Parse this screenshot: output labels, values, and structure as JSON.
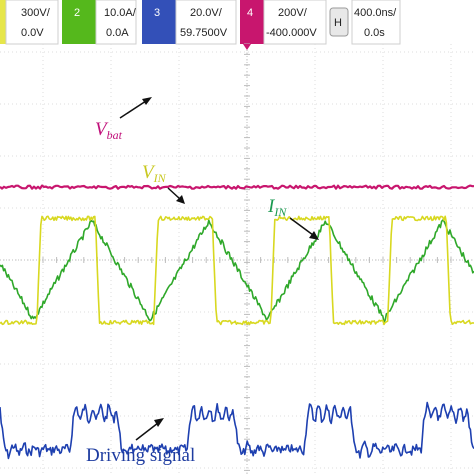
{
  "chart_data": {
    "type": "line",
    "title": "",
    "xlabel": "",
    "ylabel": "",
    "grid": true,
    "legend": "none",
    "time_per_div": "400.0ns/",
    "trigger_position": "0.0s",
    "channels": [
      {
        "id": "1",
        "scale": "300V/",
        "offset": "0.0V",
        "color": "#e6e64a",
        "active": false
      },
      {
        "id": "2",
        "scale": "10.0A/",
        "offset": "0.0A",
        "color": "#33aa11",
        "active": true
      },
      {
        "id": "3",
        "scale": "20.0V/",
        "offset": "59.7500V",
        "color": "#2d4cc8",
        "active": true
      },
      {
        "id": "4",
        "scale": "200V/",
        "offset": "-400.000V",
        "color": "#c8166e",
        "active": true
      },
      {
        "id": "H",
        "scale": "400.0ns/",
        "offset": "0.0s",
        "color": "#cccccc",
        "active": true
      }
    ],
    "series": [
      {
        "name": "V_bat",
        "color": "#c8166e",
        "shape": "dc",
        "level_div": 2.6,
        "noise_div": 0.03
      },
      {
        "name": "V_IN",
        "color": "#d8d820",
        "shape": "square",
        "period_div": 1.72,
        "phase_div": 0.05,
        "high_div": 5.2,
        "low_div": 3.2,
        "noise_div": 0.04
      },
      {
        "name": "I_IN",
        "color": "#2fa82a",
        "shape": "triangle",
        "period_div": 1.72,
        "phase_div": 0.0,
        "high_div": 5.15,
        "low_div": 3.25,
        "noise_div": 0.06
      },
      {
        "name": "Driving signal",
        "color": "#1e40b0",
        "shape": "pulse",
        "period_div": 1.72,
        "phase_div": -0.32,
        "high_div": 6.95,
        "low_div": 7.65,
        "noise_div": 0.09
      }
    ],
    "annotations": [
      {
        "main": "V",
        "sub": "bat",
        "color": "#c0107a",
        "target": "V_bat"
      },
      {
        "main": "V",
        "sub": "IN",
        "color": "#c8c820",
        "target": "V_IN"
      },
      {
        "main": "I",
        "sub": "IN",
        "color": "#1a9a50",
        "target": "I_IN"
      },
      {
        "main": "Driving signal",
        "sub": "",
        "color": "#1e3ca0",
        "target": "Driving signal"
      }
    ]
  }
}
